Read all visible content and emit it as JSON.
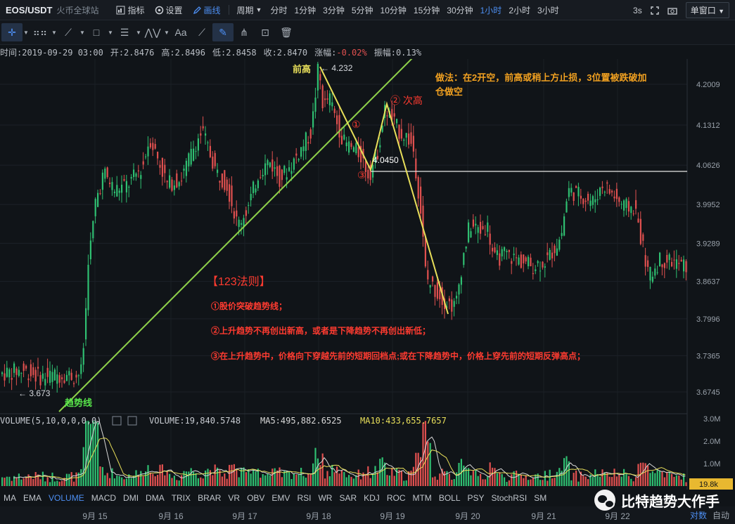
{
  "header": {
    "symbol": "EOS/USDT",
    "exchange": "火币全球站",
    "tools": [
      {
        "name": "indicator",
        "label": "指标",
        "icon": "chart-bar-icon"
      },
      {
        "name": "settings",
        "label": "设置",
        "icon": "gear-icon"
      },
      {
        "name": "draw",
        "label": "画线",
        "icon": "pencil-icon"
      }
    ],
    "period_label": "周期",
    "periods": [
      "分时",
      "1分钟",
      "3分钟",
      "5分钟",
      "10分钟",
      "15分钟",
      "30分钟",
      "1小时",
      "2小时",
      "3小时"
    ],
    "active_period": "1小时",
    "refresh": "3s",
    "layout_select": "单窗口"
  },
  "info": {
    "time": "时间:2019-09-29 03:00",
    "open": "开:2.8476",
    "high": "高:2.8496",
    "low": "低:2.8458",
    "close": "收:2.8470",
    "change_label": "涨幅:",
    "change_value": "-0.02%",
    "amplitude": "振幅:0.13%"
  },
  "volume_info": {
    "title": "VOLUME(5,10,0,0,0,0)",
    "volume": "VOLUME:19,840.5748",
    "ma5": "MA5:495,882.6525",
    "ma10": "MA10:433,655.7657"
  },
  "indicators": [
    "MA",
    "EMA",
    "VOLUME",
    "MACD",
    "DMI",
    "DMA",
    "TRIX",
    "BRAR",
    "VR",
    "OBV",
    "EMV",
    "RSI",
    "WR",
    "SAR",
    "KDJ",
    "ROC",
    "MTM",
    "BOLL",
    "PSY",
    "StochRSI",
    "SM"
  ],
  "active_indicator": "VOLUME",
  "bottom_right": {
    "left": "对数",
    "right": "自动"
  },
  "watermark": "比特趋势大作手",
  "colors": {
    "up": "#2fbf71",
    "down": "#e0504f",
    "trend": "#8fd24a",
    "pattern": "#e8df5a",
    "annotation": "#ff3b30",
    "note": "#f0a020",
    "ma5": "#d9d9d9",
    "ma10": "#e8df5a"
  },
  "chart_data": {
    "type": "candlestick",
    "price_axis": {
      "ticks": [
        4.2009,
        4.1312,
        4.0626,
        3.9952,
        3.9289,
        3.8637,
        3.7996,
        3.7365,
        3.6745
      ]
    },
    "volume_axis": {
      "ticks": [
        "3.0M",
        "2.0M",
        "1.0M"
      ],
      "current": "19.8k"
    },
    "date_ticks": [
      "9月 15",
      "9月 16",
      "9月 17",
      "9月 18",
      "9月 19",
      "9月 20",
      "9月 21",
      "9月 22"
    ],
    "price_path": [
      [
        0,
        3.705
      ],
      [
        35,
        3.712
      ],
      [
        60,
        3.7
      ],
      [
        95,
        3.705
      ],
      [
        110,
        3.7
      ],
      [
        118,
        3.71
      ],
      [
        123,
        3.78
      ],
      [
        128,
        3.91
      ],
      [
        132,
        3.93
      ],
      [
        138,
        4.0
      ],
      [
        150,
        4.05
      ],
      [
        165,
        4.02
      ],
      [
        185,
        4.03
      ],
      [
        205,
        4.06
      ],
      [
        215,
        4.11
      ],
      [
        225,
        4.08
      ],
      [
        240,
        4.03
      ],
      [
        260,
        4.04
      ],
      [
        280,
        4.1
      ],
      [
        290,
        4.12
      ],
      [
        310,
        4.05
      ],
      [
        325,
        4.03
      ],
      [
        340,
        3.96
      ],
      [
        355,
        3.99
      ],
      [
        370,
        4.05
      ],
      [
        385,
        4.07
      ],
      [
        400,
        4.04
      ],
      [
        415,
        4.06
      ],
      [
        430,
        4.09
      ],
      [
        445,
        4.12
      ],
      [
        455,
        4.232
      ],
      [
        462,
        4.16
      ],
      [
        470,
        4.18
      ],
      [
        480,
        4.14
      ],
      [
        492,
        4.1
      ],
      [
        505,
        4.09
      ],
      [
        515,
        4.08
      ],
      [
        527,
        4.045
      ],
      [
        540,
        4.09
      ],
      [
        550,
        4.16
      ],
      [
        560,
        4.14
      ],
      [
        570,
        4.12
      ],
      [
        582,
        4.11
      ],
      [
        590,
        4.09
      ],
      [
        600,
        3.99
      ],
      [
        608,
        3.87
      ],
      [
        620,
        3.85
      ],
      [
        635,
        3.83
      ],
      [
        650,
        3.82
      ],
      [
        660,
        3.9
      ],
      [
        670,
        3.96
      ],
      [
        685,
        3.95
      ],
      [
        695,
        3.96
      ],
      [
        705,
        3.9
      ],
      [
        720,
        3.91
      ],
      [
        740,
        3.9
      ],
      [
        760,
        3.89
      ],
      [
        780,
        3.9
      ],
      [
        800,
        3.94
      ],
      [
        810,
        4.02
      ],
      [
        830,
        4.01
      ],
      [
        845,
        4.0
      ],
      [
        860,
        4.03
      ],
      [
        875,
        4.01
      ],
      [
        890,
        3.99
      ],
      [
        905,
        3.99
      ],
      [
        915,
        3.93
      ],
      [
        925,
        3.87
      ],
      [
        940,
        3.9
      ],
      [
        955,
        3.9
      ],
      [
        972,
        3.89
      ]
    ],
    "annotations": {
      "prev_high_label": "前高",
      "prev_high_value": "← 4.232",
      "low_label": "← 3.673",
      "trendline_label": "趋势线",
      "point1": "①",
      "point2": "② 次高",
      "point3": "③",
      "level_value": "4.0450",
      "strategy": [
        "做法：在2开空，前高或稍上方止损，3位置被跌破加",
        "仓做空"
      ],
      "rule_title": "【123法则】",
      "rules": [
        "①股价突破趋势线；",
        "②上升趋势不再创出新高，或者是下降趋势不再创出新低；",
        "③在上升趋势中，价格向下穿越先前的短期回档点;或在下降趋势中，价格上穿先前的短期反弹高点；"
      ]
    }
  }
}
